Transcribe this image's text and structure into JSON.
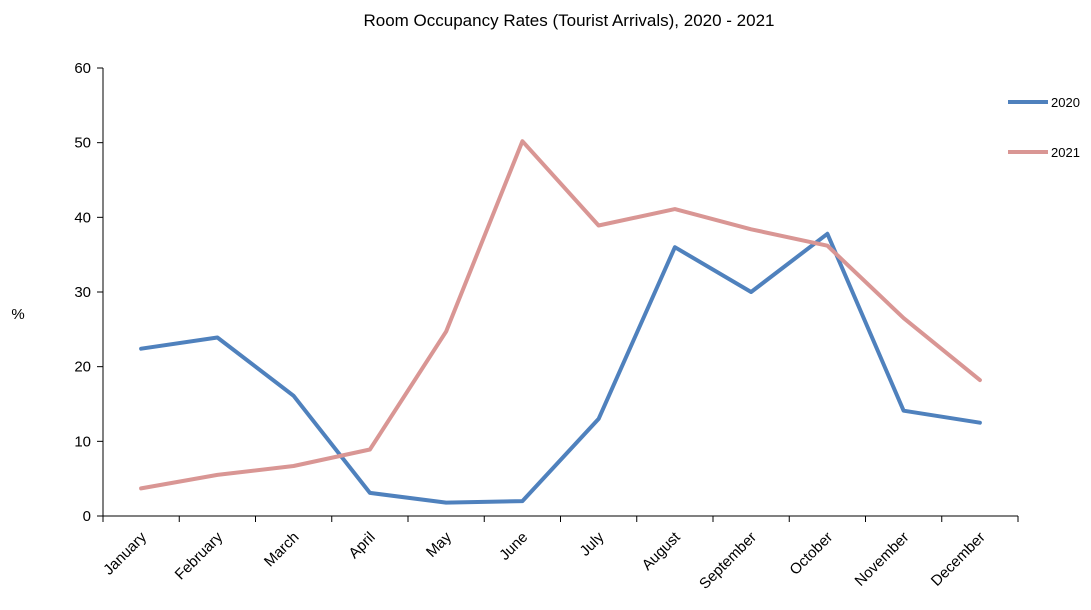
{
  "chart_data": {
    "type": "line",
    "title": "Room Occupancy Rates (Tourist Arrivals), 2020 - 2021",
    "xlabel": "",
    "ylabel": "%",
    "categories": [
      "January",
      "February",
      "March",
      "April",
      "May",
      "June",
      "July",
      "August",
      "September",
      "October",
      "November",
      "December"
    ],
    "ylim": [
      0,
      60
    ],
    "yticks": [
      0,
      10,
      20,
      30,
      40,
      50,
      60
    ],
    "grid": false,
    "legend_position": "top-right",
    "series": [
      {
        "name": "2020",
        "color": "#4f81bd",
        "values": [
          22.4,
          23.9,
          16.1,
          3.1,
          1.8,
          2.0,
          13.0,
          36.0,
          30.0,
          37.8,
          14.1,
          12.5
        ]
      },
      {
        "name": "2021",
        "color": "#d99694",
        "values": [
          3.7,
          5.5,
          6.7,
          8.9,
          24.7,
          50.2,
          38.9,
          41.1,
          38.4,
          36.2,
          26.5,
          18.2
        ]
      }
    ]
  }
}
